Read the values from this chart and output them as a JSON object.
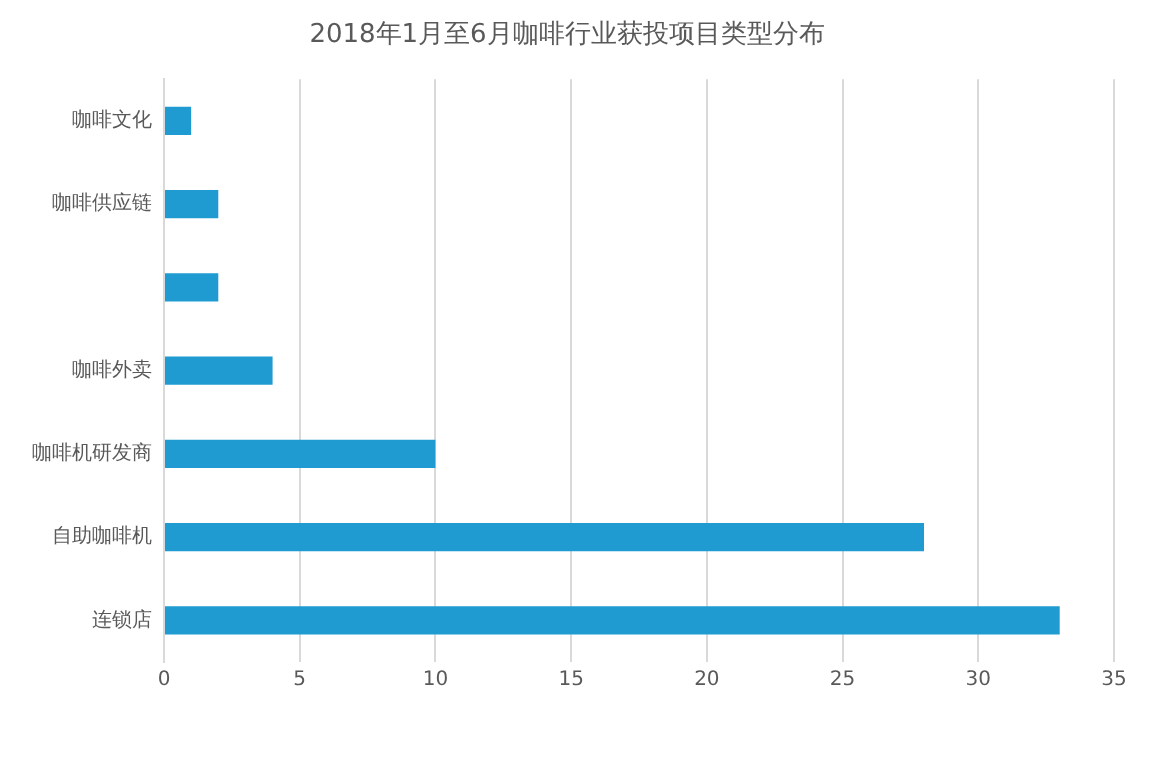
{
  "chart_data": {
    "type": "bar",
    "orientation": "horizontal",
    "title": "2018年1月至6月咖啡行业获投项目类型分布",
    "categories": [
      "咖啡文化",
      "咖啡供应链",
      null,
      "咖啡外卖",
      "咖啡机研发商",
      "自助咖啡机",
      "连锁店"
    ],
    "values": [
      1,
      2,
      2,
      4,
      10,
      28,
      33
    ],
    "color": "#1f9bd2",
    "xlim": [
      0,
      35
    ],
    "xticks": [
      0,
      5,
      10,
      15,
      20,
      25,
      30,
      35
    ],
    "grid": "x",
    "legend": false
  }
}
